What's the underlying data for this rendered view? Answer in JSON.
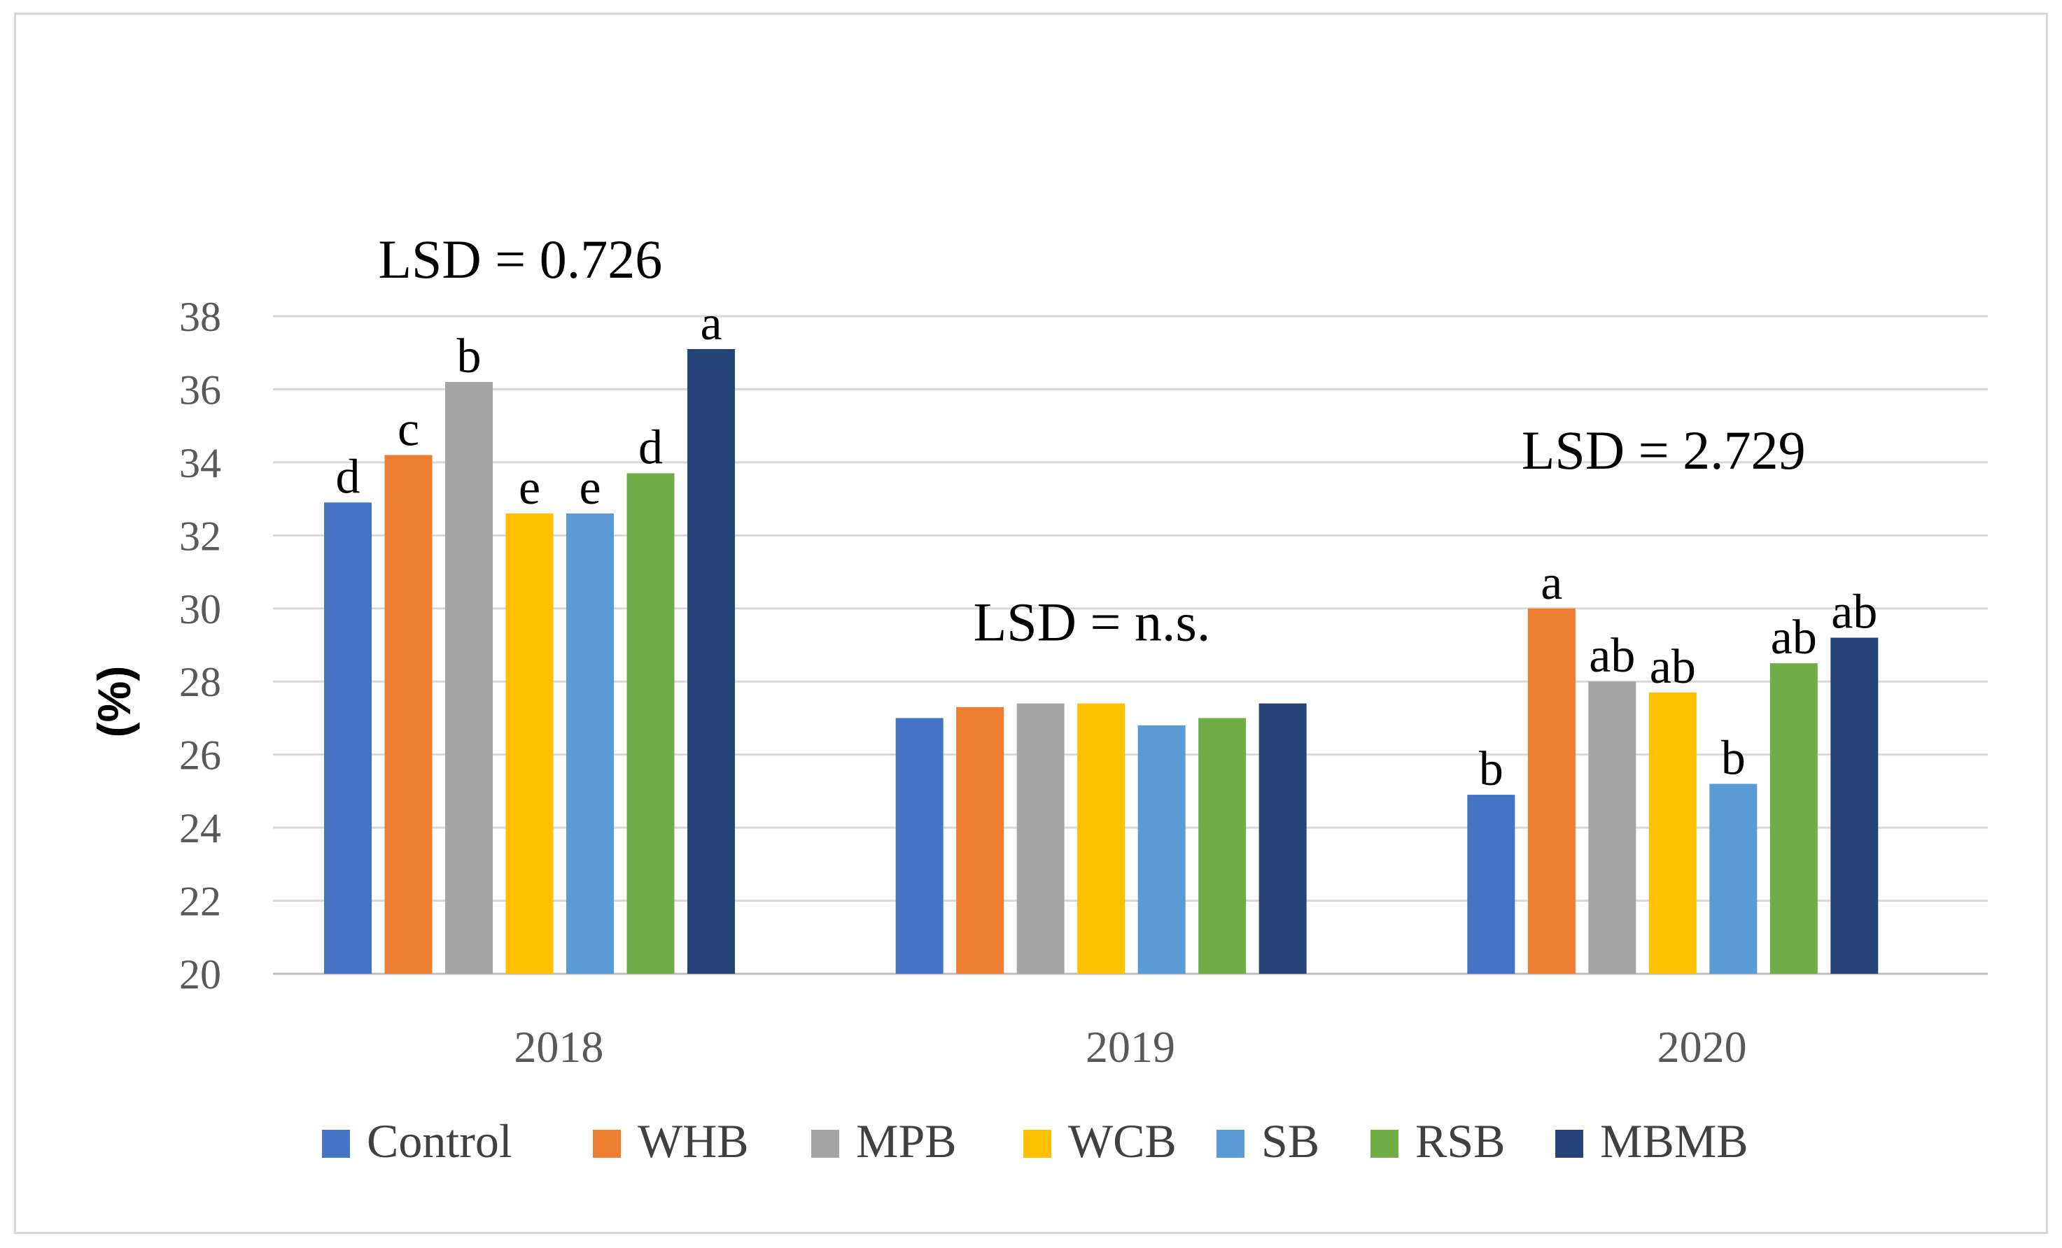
{
  "chart_data": {
    "type": "bar",
    "title": "",
    "xlabel": "",
    "ylabel": "(%)",
    "ylim": [
      20,
      38
    ],
    "yticks": [
      20,
      22,
      24,
      26,
      28,
      30,
      32,
      34,
      36,
      38
    ],
    "grid": true,
    "legend_position": "bottom",
    "categories": [
      "2018",
      "2019",
      "2020"
    ],
    "series": [
      {
        "name": "Control",
        "color": "#4472c4",
        "values": [
          32.9,
          27.0,
          24.9
        ],
        "letters": [
          "d",
          "",
          "b"
        ]
      },
      {
        "name": "WHB",
        "color": "#ed7d31",
        "values": [
          34.2,
          27.3,
          30.0
        ],
        "letters": [
          "c",
          "",
          "a"
        ]
      },
      {
        "name": "MPB",
        "color": "#a5a5a5",
        "values": [
          36.2,
          27.4,
          28.0
        ],
        "letters": [
          "b",
          "",
          "ab"
        ]
      },
      {
        "name": "WCB",
        "color": "#ffc000",
        "values": [
          32.6,
          27.4,
          27.7
        ],
        "letters": [
          "e",
          "",
          "ab"
        ]
      },
      {
        "name": "SB",
        "color": "#5b9bd5",
        "values": [
          32.6,
          26.8,
          25.2
        ],
        "letters": [
          "e",
          "",
          "b"
        ]
      },
      {
        "name": "RSB",
        "color": "#70ad47",
        "values": [
          33.7,
          27.0,
          28.5
        ],
        "letters": [
          "d",
          "",
          "ab"
        ]
      },
      {
        "name": "MBMB",
        "color": "#264478",
        "values": [
          37.1,
          27.4,
          29.2
        ],
        "letters": [
          "a",
          "",
          "ab"
        ]
      }
    ],
    "annotations": [
      {
        "category": "2018",
        "text": "LSD = 0.726"
      },
      {
        "category": "2019",
        "text": "LSD = n.s."
      },
      {
        "category": "2020",
        "text": "LSD = 2.729"
      }
    ]
  }
}
